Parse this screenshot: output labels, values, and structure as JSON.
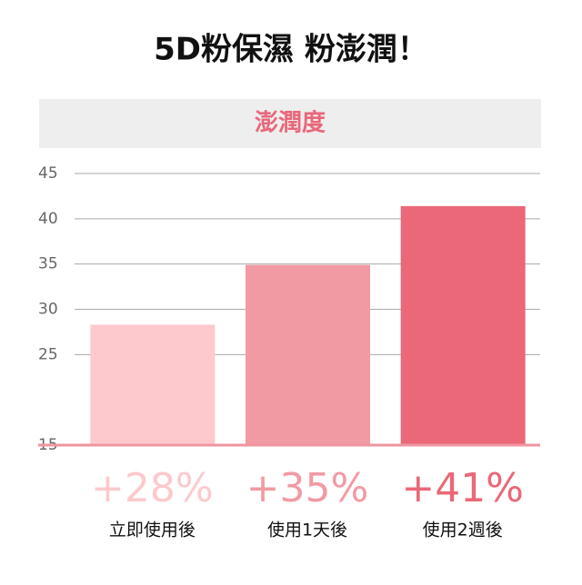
{
  "chart_data": {
    "type": "bar",
    "title": "5D粉保濕 粉澎潤！",
    "subtitle": "澎潤度",
    "categories": [
      "立即使用後",
      "使用1天後",
      "使用2週後"
    ],
    "values": [
      28.3,
      34.9,
      41.4
    ],
    "value_labels": [
      "+28%",
      "+35%",
      "+41%"
    ],
    "colors": [
      "#fdc9cd",
      "#f29aa3",
      "#ea6878"
    ],
    "ylim": [
      15,
      45
    ],
    "yticks": [
      45,
      40,
      35,
      30,
      25,
      15
    ],
    "grid": true
  }
}
